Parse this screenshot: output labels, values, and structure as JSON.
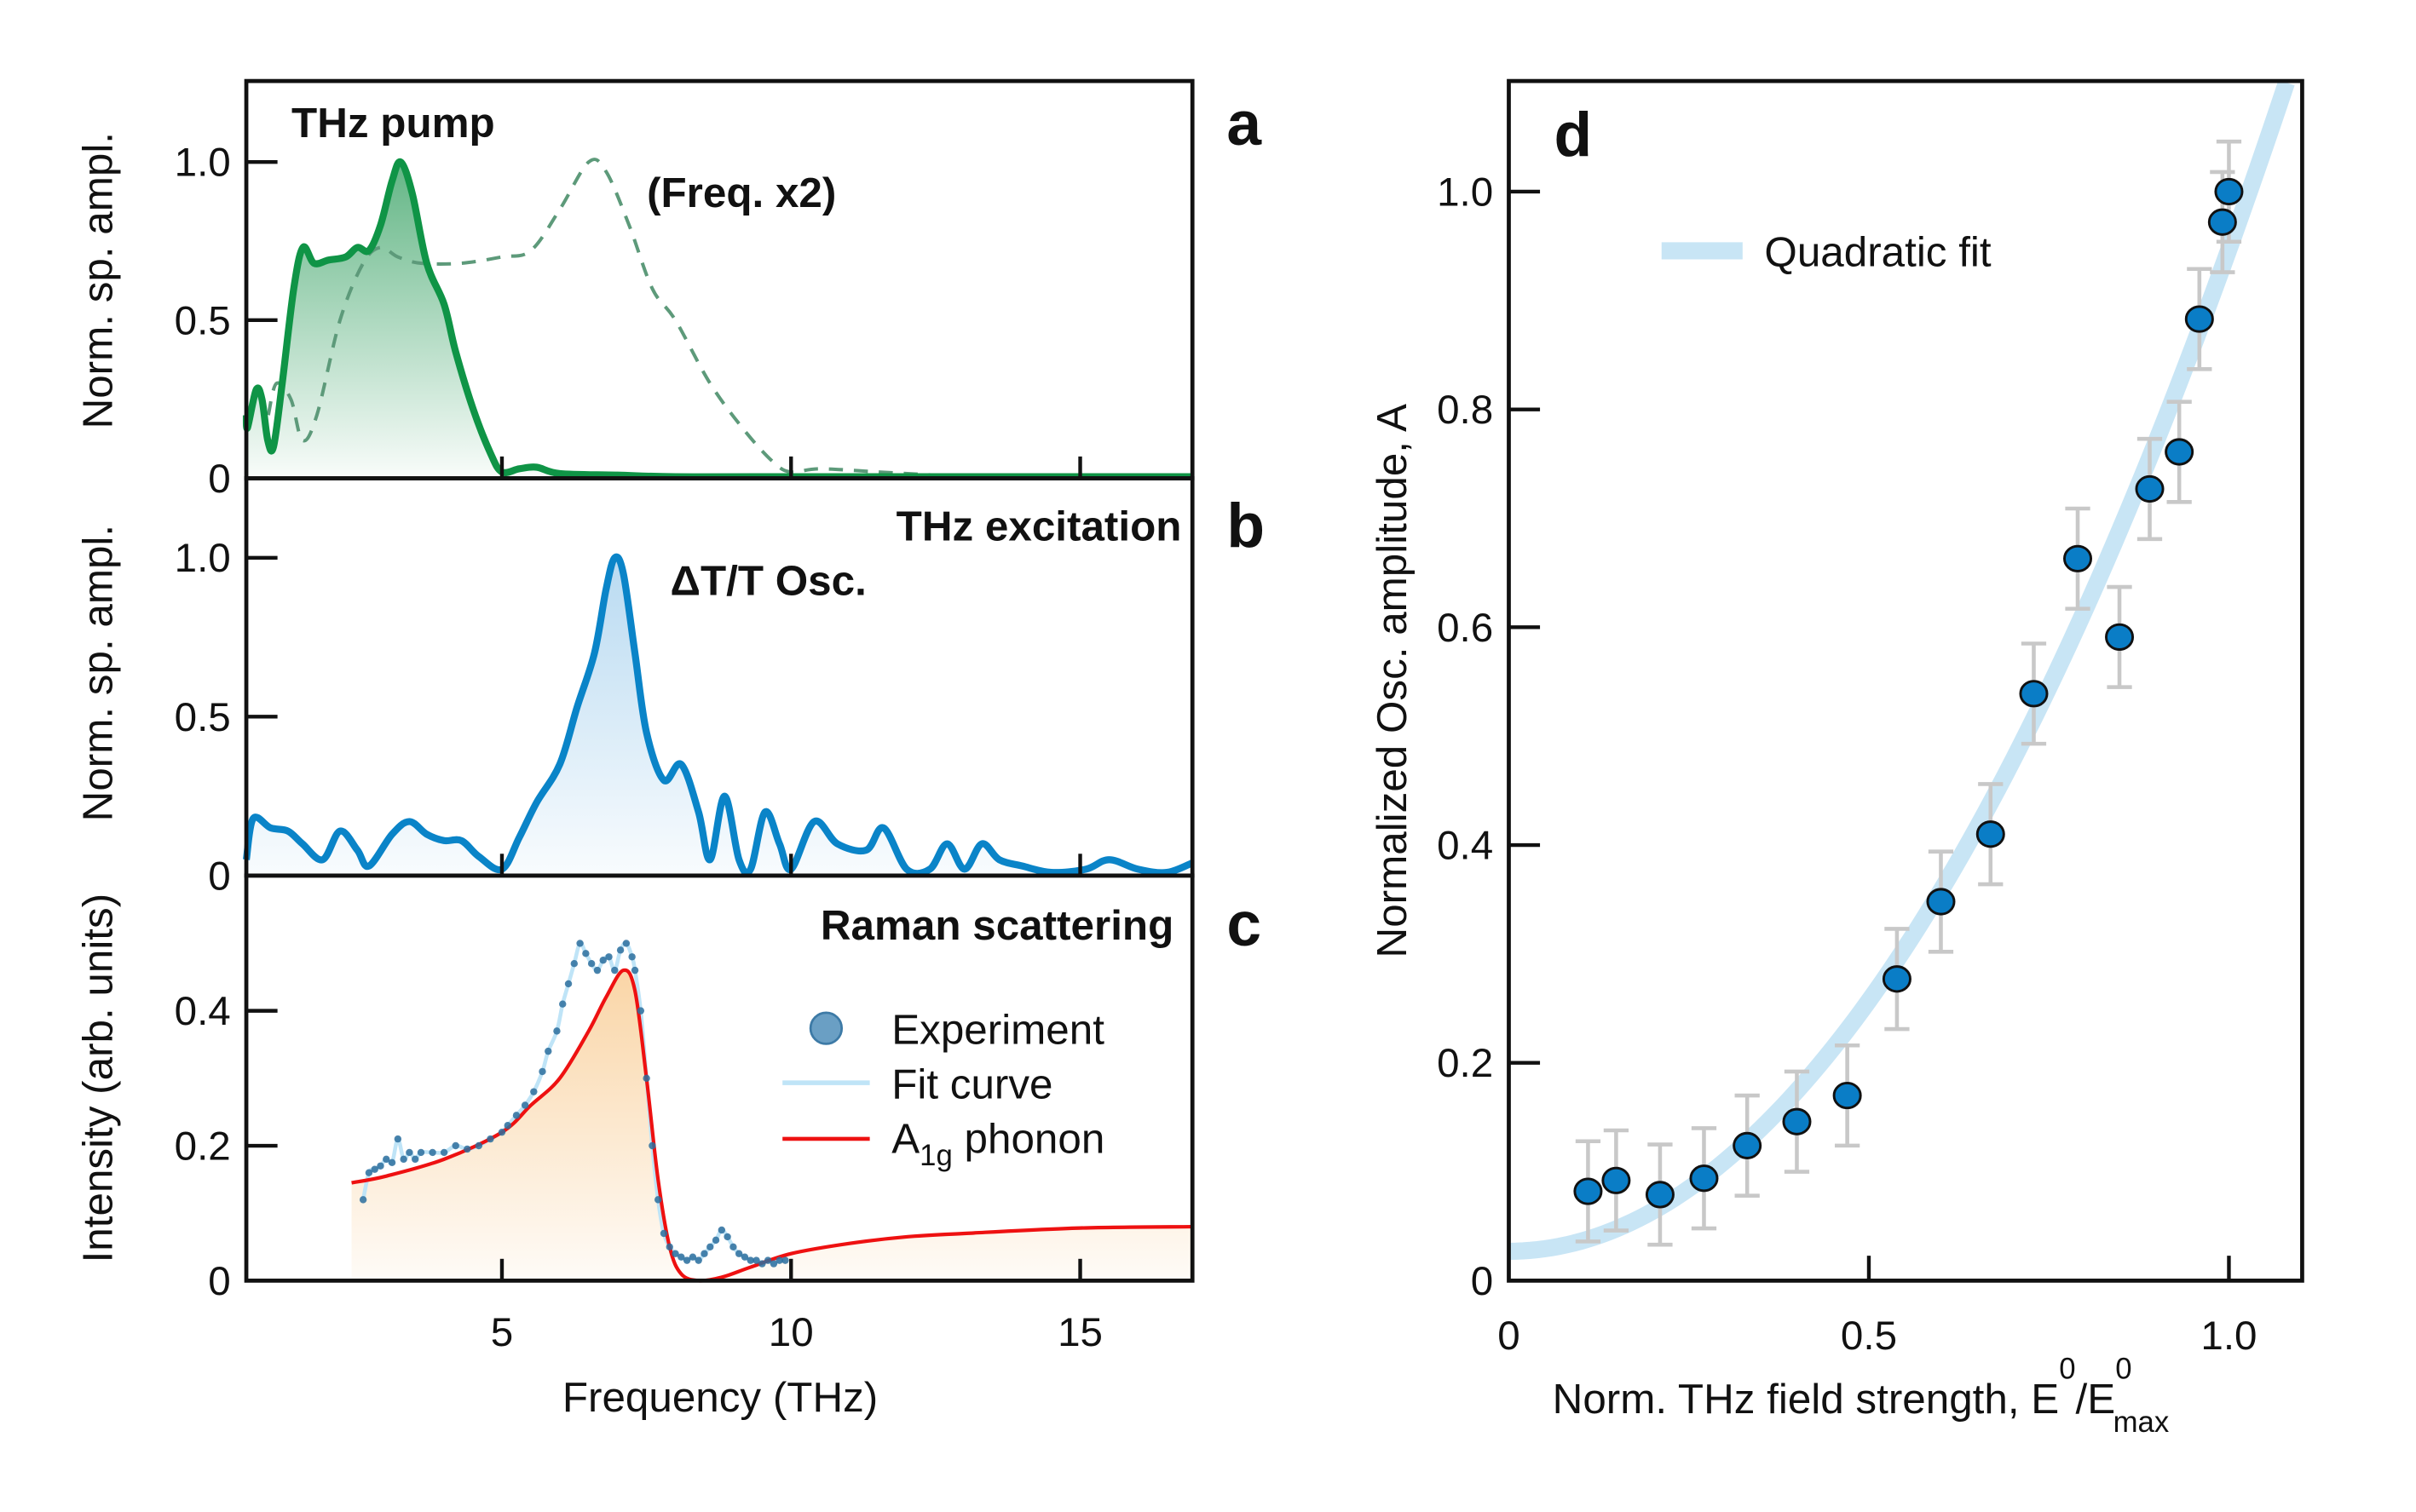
{
  "colors": {
    "pump": "#0f9446",
    "freq2": "#5d9a7a",
    "osc": "#0a84c8",
    "phonon": "#ee1111",
    "experiment": "#2b6f9e",
    "fit": "#bfe4f7",
    "quad_fit": "#c8e5f5",
    "points": "#0a7dc6",
    "errorbar": "#c8c8c8"
  },
  "chart_data": [
    {
      "panel": "a",
      "type": "line",
      "ylabel": "Norm. sp. ampl.",
      "xlim": [
        0.58,
        16.95
      ],
      "ylim": [
        0,
        1.25
      ],
      "yticks": [
        "0",
        "0.5",
        "1.0"
      ],
      "xticks": [
        5,
        10,
        15
      ],
      "series": [
        {
          "name": "THz pump",
          "style": "solid-filled",
          "x": [
            0.52,
            0.6,
            0.75,
            0.85,
            0.95,
            1.05,
            1.2,
            1.4,
            1.56,
            1.75,
            2.0,
            2.3,
            2.5,
            2.7,
            2.9,
            3.1,
            3.25,
            3.45,
            3.7,
            4.0,
            4.2,
            4.5,
            4.8,
            5.0,
            5.3,
            5.6,
            6.0,
            7,
            8,
            10,
            17
          ],
          "y": [
            0.2,
            0.16,
            0.28,
            0.25,
            0.12,
            0.1,
            0.3,
            0.6,
            0.73,
            0.68,
            0.69,
            0.7,
            0.73,
            0.72,
            0.8,
            0.94,
            1.0,
            0.9,
            0.68,
            0.55,
            0.4,
            0.22,
            0.08,
            0.02,
            0.03,
            0.035,
            0.015,
            0.01,
            0.005,
            0.005,
            0.005
          ]
        },
        {
          "name": "(Freq. x2)",
          "style": "dashed",
          "x": [
            0.96,
            1.1,
            1.35,
            1.55,
            1.8,
            2.2,
            2.6,
            2.9,
            3.2,
            3.6,
            4.3,
            5.0,
            5.5,
            6.0,
            6.5,
            6.8,
            7.2,
            7.6,
            8.0,
            8.6,
            9.2,
            9.7,
            10.0,
            10.5,
            11.5,
            12.5,
            13
          ],
          "y": [
            0.2,
            0.3,
            0.25,
            0.12,
            0.2,
            0.5,
            0.68,
            0.73,
            0.7,
            0.68,
            0.68,
            0.7,
            0.72,
            0.85,
            1.0,
            0.97,
            0.8,
            0.6,
            0.5,
            0.3,
            0.15,
            0.05,
            0.02,
            0.03,
            0.02,
            0.01,
            0.005
          ]
        }
      ]
    },
    {
      "panel": "b",
      "type": "line",
      "title": "THz excitation",
      "ylabel": "Norm. sp. ampl.",
      "xlim": [
        0.58,
        16.95
      ],
      "ylim": [
        0,
        1.25
      ],
      "yticks": [
        "0",
        "0.5",
        "1.0"
      ],
      "xticks": [
        5,
        10,
        15
      ],
      "series": [
        {
          "name": "ΔT/T Osc.",
          "x": [
            0.52,
            0.7,
            1.0,
            1.3,
            1.55,
            1.9,
            2.2,
            2.5,
            2.7,
            3.1,
            3.4,
            3.7,
            4.0,
            4.3,
            4.6,
            5.0,
            5.3,
            5.6,
            6.0,
            6.3,
            6.6,
            6.8,
            6.95,
            7.1,
            7.3,
            7.5,
            7.8,
            8.1,
            8.4,
            8.6,
            8.85,
            9.1,
            9.3,
            9.55,
            9.8,
            10.0,
            10.4,
            10.8,
            11.3,
            11.6,
            12.0,
            12.4,
            12.7,
            13.0,
            13.3,
            13.6,
            14.0,
            14.5,
            15.1,
            15.5,
            16.0,
            16.5,
            17
          ],
          "y": [
            0.05,
            0.18,
            0.15,
            0.14,
            0.1,
            0.05,
            0.14,
            0.08,
            0.03,
            0.13,
            0.17,
            0.13,
            0.11,
            0.11,
            0.06,
            0.02,
            0.12,
            0.23,
            0.35,
            0.53,
            0.7,
            0.9,
            1.0,
            0.95,
            0.7,
            0.45,
            0.3,
            0.35,
            0.2,
            0.05,
            0.25,
            0.05,
            0.02,
            0.2,
            0.1,
            0.02,
            0.17,
            0.1,
            0.08,
            0.15,
            0.02,
            0.02,
            0.1,
            0.02,
            0.1,
            0.05,
            0.03,
            0.01,
            0.02,
            0.05,
            0.02,
            0.01,
            0.04
          ]
        }
      ]
    },
    {
      "panel": "c",
      "type": "scatter",
      "title": "Raman scattering",
      "xlabel": "Frequency (THz)",
      "ylabel": "Intensity (arb. units)",
      "xlim": [
        0.58,
        16.95
      ],
      "ylim": [
        0,
        0.6
      ],
      "yticks": [
        "0",
        "0.2",
        "0.4"
      ],
      "xticks": [
        "5",
        "10",
        "15"
      ],
      "legend": {
        "position": "right",
        "experiment": "Experiment",
        "fit": "Fit curve",
        "phonon_main": "A",
        "phonon_sub": "1g",
        "phonon_rest": " phonon"
      },
      "series": [
        {
          "name": "Experiment",
          "style": "dots",
          "x": [
            2.6,
            2.7,
            2.8,
            2.9,
            3.0,
            3.1,
            3.2,
            3.3,
            3.4,
            3.5,
            3.6,
            3.8,
            4.0,
            4.2,
            4.4,
            4.6,
            4.8,
            5.0,
            5.1,
            5.25,
            5.4,
            5.55,
            5.7,
            5.8,
            5.95,
            6.05,
            6.15,
            6.25,
            6.35,
            6.45,
            6.55,
            6.65,
            6.75,
            6.85,
            6.95,
            7.05,
            7.15,
            7.25,
            7.3,
            7.4,
            7.5,
            7.6,
            7.7,
            7.8,
            7.9,
            8.0,
            8.1,
            8.2,
            8.3,
            8.4,
            8.5,
            8.6,
            8.7,
            8.8,
            8.9,
            9.0,
            9.1,
            9.2,
            9.3,
            9.4,
            9.5,
            9.6,
            9.7,
            9.8,
            9.9
          ],
          "y": [
            0.12,
            0.16,
            0.165,
            0.17,
            0.18,
            0.175,
            0.21,
            0.18,
            0.19,
            0.18,
            0.19,
            0.19,
            0.19,
            0.2,
            0.195,
            0.2,
            0.21,
            0.22,
            0.23,
            0.245,
            0.26,
            0.28,
            0.31,
            0.34,
            0.37,
            0.41,
            0.44,
            0.47,
            0.5,
            0.485,
            0.47,
            0.46,
            0.475,
            0.48,
            0.46,
            0.49,
            0.5,
            0.48,
            0.46,
            0.4,
            0.3,
            0.2,
            0.12,
            0.07,
            0.05,
            0.04,
            0.035,
            0.03,
            0.035,
            0.03,
            0.04,
            0.05,
            0.06,
            0.075,
            0.065,
            0.05,
            0.04,
            0.035,
            0.03,
            0.03,
            0.025,
            0.03,
            0.025,
            0.03,
            0.03
          ]
        },
        {
          "name": "A1g phonon",
          "style": "line",
          "x": [
            2.4,
            3,
            4,
            5,
            5.5,
            6,
            6.5,
            6.8,
            7.1,
            7.3,
            7.5,
            7.7,
            7.9,
            8.1,
            8.4,
            8.8,
            9.3,
            10,
            11,
            12,
            13,
            15,
            17
          ],
          "y": [
            0.145,
            0.155,
            0.18,
            0.22,
            0.26,
            0.3,
            0.37,
            0.42,
            0.46,
            0.43,
            0.3,
            0.15,
            0.05,
            0.01,
            0.0,
            0.005,
            0.02,
            0.04,
            0.055,
            0.065,
            0.07,
            0.078,
            0.08
          ]
        }
      ]
    },
    {
      "panel": "d",
      "type": "scatter",
      "ylabel": "Normalized Osc. amplitude, A",
      "xlabel": {
        "text": "Norm. THz field strength, E",
        "sup1": "0",
        "slash": "/E",
        "sup2": "0",
        "sub": "max"
      },
      "xlim": [
        0,
        1.1
      ],
      "ylim": [
        0,
        1.1
      ],
      "xticks": [
        "0",
        "0.5",
        "1.0"
      ],
      "yticks": [
        "0",
        "0.2",
        "0.4",
        "0.6",
        "0.8",
        "1.0"
      ],
      "legend": {
        "position": "top-left",
        "fit": "Quadratic fit"
      },
      "points": {
        "x": [
          0.11,
          0.149,
          0.21,
          0.271,
          0.331,
          0.4,
          0.47,
          0.539,
          0.6,
          0.669,
          0.729,
          0.79,
          0.848,
          0.89,
          0.931,
          0.959,
          0.991,
          1.0
        ],
        "y": [
          0.082,
          0.092,
          0.079,
          0.094,
          0.124,
          0.146,
          0.17,
          0.277,
          0.348,
          0.41,
          0.539,
          0.663,
          0.591,
          0.727,
          0.761,
          0.883,
          0.972,
          1.0
        ],
        "error": 0.046
      },
      "fit": {
        "type": "quadratic",
        "a0": 0.027,
        "a2": 0.92
      }
    }
  ],
  "labels": {
    "a": "a",
    "b": "b",
    "c": "c",
    "d": "d",
    "pump": "THz pump",
    "freq2": "(Freq. x2)",
    "excitation": "THz excitation",
    "osc": "ΔT/T Osc.",
    "raman": "Raman scattering"
  }
}
